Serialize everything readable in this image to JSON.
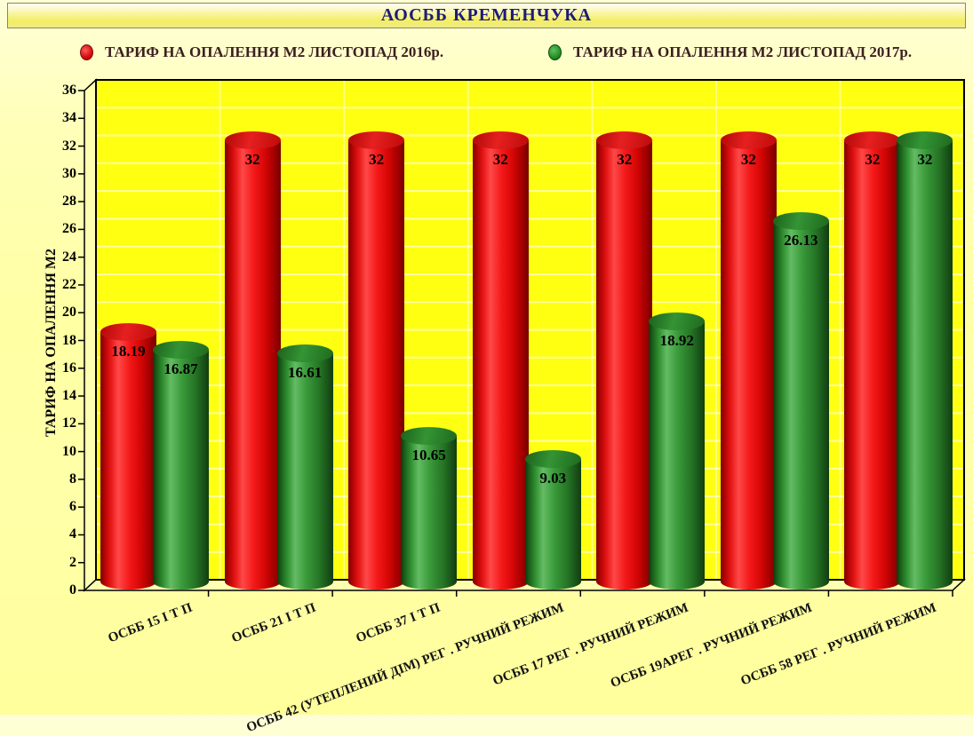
{
  "title": {
    "text": "АОСББ КРЕМЕНЧУКА",
    "color": "#1c1c78"
  },
  "legend": [
    {
      "label": "ТАРИФ НА ОПАЛЕННЯ М2 ЛИСТОПАД 2016р.",
      "color": "#e01111"
    },
    {
      "label": "ТАРИФ НА ОПАЛЕННЯ М2 ЛИСТОПАД 2017р.",
      "color": "#2e8b2e"
    }
  ],
  "chart_data": {
    "type": "bar",
    "style": "3d-cylinder",
    "title": "АОСББ КРЕМЕНЧУКА",
    "xlabel": "",
    "ylabel": "ТАРИФ НА ОПАЛЕННЯ М2",
    "ylim": [
      0,
      36
    ],
    "ytick_step": 2,
    "grid": true,
    "legend_position": "top",
    "value_labels": true,
    "plot_bg": "#ffff12",
    "wall_bg": "#ffffb0",
    "categories": [
      "ОСББ 15 І Т П",
      "ОСББ 21 І Т П",
      "ОСББ 37 І Т П",
      "ОСББ 42 (УТЕПЛЕНИЙ ДІМ) РЕГ . РУЧНИЙ РЕЖИМ",
      "ОСББ 17 РЕГ . РУЧНИЙ РЕЖИМ",
      "ОСББ 19АРЕГ . РУЧНИЙ РЕЖИМ",
      "ОСББ  58  РЕГ . РУЧНИЙ РЕЖИМ"
    ],
    "series": [
      {
        "name": "ТАРИФ НА ОПАЛЕННЯ М2 ЛИСТОПАД 2016р.",
        "color": "#e01111",
        "values": [
          18.19,
          32,
          32,
          32,
          32,
          32,
          32
        ]
      },
      {
        "name": "ТАРИФ НА ОПАЛЕННЯ М2 ЛИСТОПАД 2017р.",
        "color": "#2e8b2e",
        "values": [
          16.87,
          16.61,
          10.65,
          9.03,
          18.92,
          26.13,
          32
        ]
      }
    ]
  }
}
